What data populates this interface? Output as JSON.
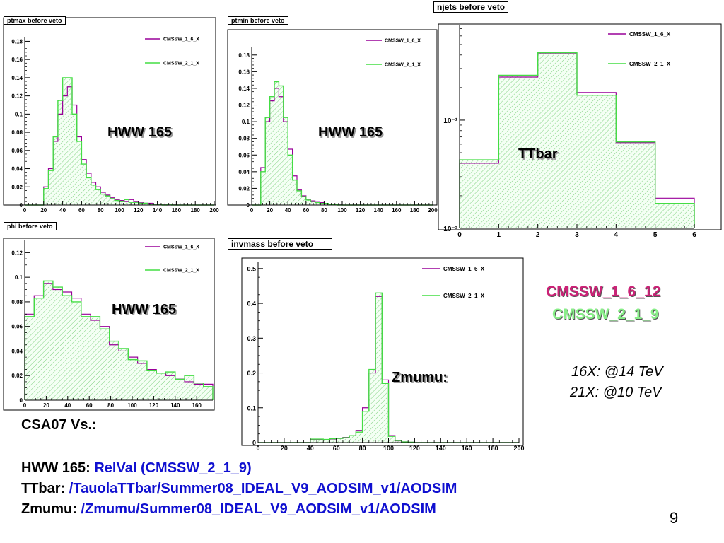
{
  "chart_data": [
    {
      "id": "ptmax",
      "type": "histogram",
      "title": "ptmax before veto",
      "annotation": "HWW 165",
      "log_y": false,
      "xlim": [
        0,
        200
      ],
      "ylim": [
        0,
        0.185
      ],
      "xticks": [
        0,
        20,
        40,
        60,
        80,
        100,
        120,
        140,
        160,
        180,
        200
      ],
      "xtick_labels": [
        "0",
        "20",
        "40",
        "60",
        "80",
        "100",
        "120",
        "140",
        "160",
        "180",
        "200"
      ],
      "yticks": [
        0,
        0.02,
        0.04,
        0.06,
        0.08,
        0.1,
        0.12,
        0.14,
        0.16,
        0.18
      ],
      "ytick_labels": [
        "0",
        "0.02",
        "0.04",
        "0.06",
        "0.08",
        "0.1",
        "0.12",
        "0.14",
        "0.16",
        "0.18"
      ],
      "bin_edges": [
        0,
        5,
        10,
        15,
        20,
        25,
        30,
        35,
        40,
        45,
        50,
        55,
        60,
        65,
        70,
        75,
        80,
        85,
        90,
        95,
        100,
        105,
        110,
        115,
        120,
        125,
        130,
        135,
        140,
        145,
        150,
        155,
        160,
        165,
        170,
        175,
        180,
        185,
        190,
        195,
        200
      ],
      "series": [
        {
          "name": "CMSSW_1_6_X",
          "color": "#990099",
          "values": [
            0,
            0,
            0,
            0,
            0.02,
            0.04,
            0.07,
            0.1,
            0.12,
            0.13,
            0.11,
            0.075,
            0.05,
            0.035,
            0.025,
            0.02,
            0.014,
            0.011,
            0.008,
            0.006,
            0.005,
            0.004,
            0.006,
            0.004,
            0.003,
            0.002,
            0.002,
            0.001,
            0.001,
            0.001,
            0.0,
            0.001,
            0.0,
            0.0,
            0.0,
            0,
            0,
            0,
            0,
            0
          ]
        },
        {
          "name": "CMSSW_2_1_X",
          "color": "#44dd44",
          "values": [
            0,
            0,
            0,
            0,
            0.018,
            0.038,
            0.075,
            0.115,
            0.14,
            0.14,
            0.1,
            0.07,
            0.045,
            0.03,
            0.022,
            0.017,
            0.012,
            0.01,
            0.007,
            0.005,
            0.004,
            0.006,
            0.003,
            0.003,
            0.002,
            0.002,
            0.001,
            0.001,
            0.001,
            0.0,
            0.001,
            0.0,
            0.0,
            0.0,
            0.0,
            0,
            0,
            0,
            0,
            0
          ]
        }
      ]
    },
    {
      "id": "ptmin",
      "type": "histogram",
      "title": "ptmin before veto",
      "annotation": "HWW 165",
      "log_y": false,
      "xlim": [
        0,
        200
      ],
      "ylim": [
        0,
        0.19
      ],
      "xticks": [
        0,
        20,
        40,
        60,
        80,
        100,
        120,
        140,
        160,
        180,
        200
      ],
      "xtick_labels": [
        "0",
        "20",
        "40",
        "60",
        "80",
        "100",
        "120",
        "140",
        "160",
        "180",
        "200"
      ],
      "yticks": [
        0,
        0.02,
        0.04,
        0.06,
        0.08,
        0.1,
        0.12,
        0.14,
        0.16,
        0.18
      ],
      "ytick_labels": [
        "0",
        "0.02",
        "0.04",
        "0.06",
        "0.08",
        "0.1",
        "0.12",
        "0.14",
        "0.16",
        "0.18"
      ],
      "bin_edges": [
        0,
        5,
        10,
        15,
        20,
        25,
        30,
        35,
        40,
        45,
        50,
        55,
        60,
        65,
        70,
        75,
        80,
        85,
        90,
        95,
        100,
        105,
        110,
        115,
        120,
        125,
        130,
        135,
        140,
        145,
        150,
        155,
        160,
        165,
        170,
        175,
        180,
        185,
        190,
        195,
        200
      ],
      "series": [
        {
          "name": "CMSSW_1_6_X",
          "color": "#990099",
          "values": [
            0,
            0,
            0.045,
            0.1,
            0.125,
            0.14,
            0.13,
            0.1,
            0.067,
            0.035,
            0.018,
            0.011,
            0.007,
            0.005,
            0.004,
            0.003,
            0.002,
            0.001,
            0.001,
            0.001,
            0.0,
            0.0,
            0.0,
            0.0,
            0,
            0,
            0,
            0,
            0,
            0,
            0,
            0,
            0,
            0,
            0,
            0,
            0,
            0,
            0,
            0
          ]
        },
        {
          "name": "CMSSW_2_1_X",
          "color": "#44dd44",
          "values": [
            0,
            0,
            0.04,
            0.105,
            0.13,
            0.148,
            0.143,
            0.105,
            0.06,
            0.03,
            0.017,
            0.01,
            0.006,
            0.004,
            0.003,
            0.002,
            0.002,
            0.001,
            0.001,
            0.0,
            0.0,
            0.0,
            0.0,
            0.0,
            0,
            0,
            0,
            0,
            0,
            0,
            0,
            0,
            0,
            0,
            0,
            0,
            0,
            0,
            0,
            0
          ]
        }
      ]
    },
    {
      "id": "njets",
      "type": "histogram",
      "title": "njets before veto",
      "annotation": "TTbar",
      "log_y": true,
      "xlim": [
        0,
        6
      ],
      "ylim": [
        0.01,
        0.75
      ],
      "xticks": [
        0,
        1,
        2,
        3,
        4,
        5,
        6
      ],
      "xtick_labels": [
        "0",
        "1",
        "2",
        "3",
        "4",
        "5",
        "6"
      ],
      "yticks": [
        0.01,
        0.1
      ],
      "ytick_labels": [
        "10⁻²",
        "10⁻¹"
      ],
      "bin_edges": [
        0,
        1,
        2,
        3,
        4,
        5,
        6
      ],
      "series": [
        {
          "name": "CMSSW_1_6_X",
          "color": "#990099",
          "values": [
            0.04,
            0.25,
            0.41,
            0.18,
            0.062,
            0.019
          ]
        },
        {
          "name": "CMSSW_2_1_X",
          "color": "#44dd44",
          "values": [
            0.043,
            0.26,
            0.42,
            0.17,
            0.063,
            0.017
          ]
        }
      ]
    },
    {
      "id": "phi",
      "type": "histogram",
      "title": "phi before veto",
      "annotation": "HWW 165",
      "log_y": false,
      "xlim": [
        0,
        175
      ],
      "ylim": [
        0,
        0.13
      ],
      "xticks": [
        0,
        20,
        40,
        60,
        80,
        100,
        120,
        140,
        160
      ],
      "xtick_labels": [
        "0",
        "20",
        "40",
        "60",
        "80",
        "100",
        "120",
        "140",
        "160"
      ],
      "yticks": [
        0,
        0.02,
        0.04,
        0.06,
        0.08,
        0.1,
        0.12
      ],
      "ytick_labels": [
        "0",
        "0.02",
        "0.04",
        "0.06",
        "0.08",
        "0.1",
        "0.12"
      ],
      "bin_edges": [
        0,
        8.75,
        17.5,
        26.25,
        35,
        43.75,
        52.5,
        61.25,
        70,
        78.75,
        87.5,
        96.25,
        105,
        113.75,
        122.5,
        131.25,
        140,
        148.75,
        157.5,
        166.25,
        175
      ],
      "series": [
        {
          "name": "CMSSW_1_6_X",
          "color": "#990099",
          "values": [
            0.07,
            0.085,
            0.095,
            0.09,
            0.088,
            0.083,
            0.07,
            0.065,
            0.06,
            0.045,
            0.04,
            0.035,
            0.03,
            0.025,
            0.022,
            0.02,
            0.018,
            0.015,
            0.013,
            0.013
          ]
        },
        {
          "name": "CMSSW_2_1_X",
          "color": "#44dd44",
          "values": [
            0.068,
            0.083,
            0.097,
            0.092,
            0.085,
            0.08,
            0.068,
            0.068,
            0.058,
            0.048,
            0.042,
            0.033,
            0.032,
            0.024,
            0.022,
            0.023,
            0.017,
            0.02,
            0.014,
            0.011
          ]
        }
      ]
    },
    {
      "id": "invmass",
      "type": "histogram",
      "title": "invmass before veto",
      "annotation": "Zmumu:",
      "log_y": false,
      "xlim": [
        0,
        200
      ],
      "ylim": [
        0,
        0.52
      ],
      "xticks": [
        0,
        20,
        40,
        60,
        80,
        100,
        120,
        140,
        160,
        180,
        200
      ],
      "xtick_labels": [
        "0",
        "20",
        "40",
        "60",
        "80",
        "100",
        "120",
        "140",
        "160",
        "180",
        "200"
      ],
      "yticks": [
        0,
        0.1,
        0.2,
        0.3,
        0.4,
        0.5
      ],
      "ytick_labels": [
        "0",
        "0.1",
        "0.2",
        "0.3",
        "0.4",
        "0.5"
      ],
      "bin_edges": [
        0,
        5,
        10,
        15,
        20,
        25,
        30,
        35,
        40,
        45,
        50,
        55,
        60,
        65,
        70,
        75,
        80,
        85,
        90,
        95,
        100,
        105,
        110,
        115,
        120,
        125,
        130,
        135,
        140,
        145,
        150,
        155,
        160,
        165,
        170,
        175,
        180,
        185,
        190,
        195,
        200
      ],
      "series": [
        {
          "name": "CMSSW_1_6_X",
          "color": "#990099",
          "values": [
            0,
            0,
            0,
            0,
            0,
            0,
            0,
            0,
            0.008,
            0.008,
            0.009,
            0.01,
            0.012,
            0.015,
            0.02,
            0.035,
            0.1,
            0.2,
            0.42,
            0.18,
            0.02,
            0.005,
            0.002,
            0.001,
            0.0,
            0,
            0,
            0,
            0,
            0,
            0,
            0,
            0,
            0,
            0,
            0,
            0,
            0,
            0,
            0
          ]
        },
        {
          "name": "CMSSW_2_1_X",
          "color": "#44dd44",
          "values": [
            0,
            0,
            0,
            0,
            0,
            0,
            0,
            0,
            0.01,
            0.01,
            0.009,
            0.011,
            0.012,
            0.014,
            0.02,
            0.03,
            0.09,
            0.21,
            0.43,
            0.17,
            0.018,
            0.006,
            0.002,
            0.001,
            0.0,
            0,
            0,
            0,
            0,
            0,
            0,
            0,
            0,
            0,
            0,
            0,
            0,
            0,
            0,
            0
          ]
        }
      ]
    }
  ],
  "labels": {
    "legend_1": "CMSSW_1_6_12",
    "legend_2": "CMSSW_2_1_9",
    "energy_1": "16X: @14 TeV",
    "energy_2": "21X: @10 TeV",
    "csa07": "CSA07 Vs.:",
    "hww_label": "HWW 165: ",
    "hww_value": "RelVal (CMSSW_2_1_9)",
    "ttbar_label": "TTbar: ",
    "ttbar_value": "/TauolaTTbar/Summer08_IDEAL_V9_AODSIM_v1/AODSIM",
    "zmumu_label": "Zmumu: ",
    "zmumu_value": "/Zmumu/Summer08_IDEAL_V9_AODSIM_v1/AODSIM",
    "page_number": "9"
  },
  "colors": {
    "legend_1": "#cc2277",
    "legend_2": "#88ee88",
    "link_blue": "#1010d0"
  }
}
